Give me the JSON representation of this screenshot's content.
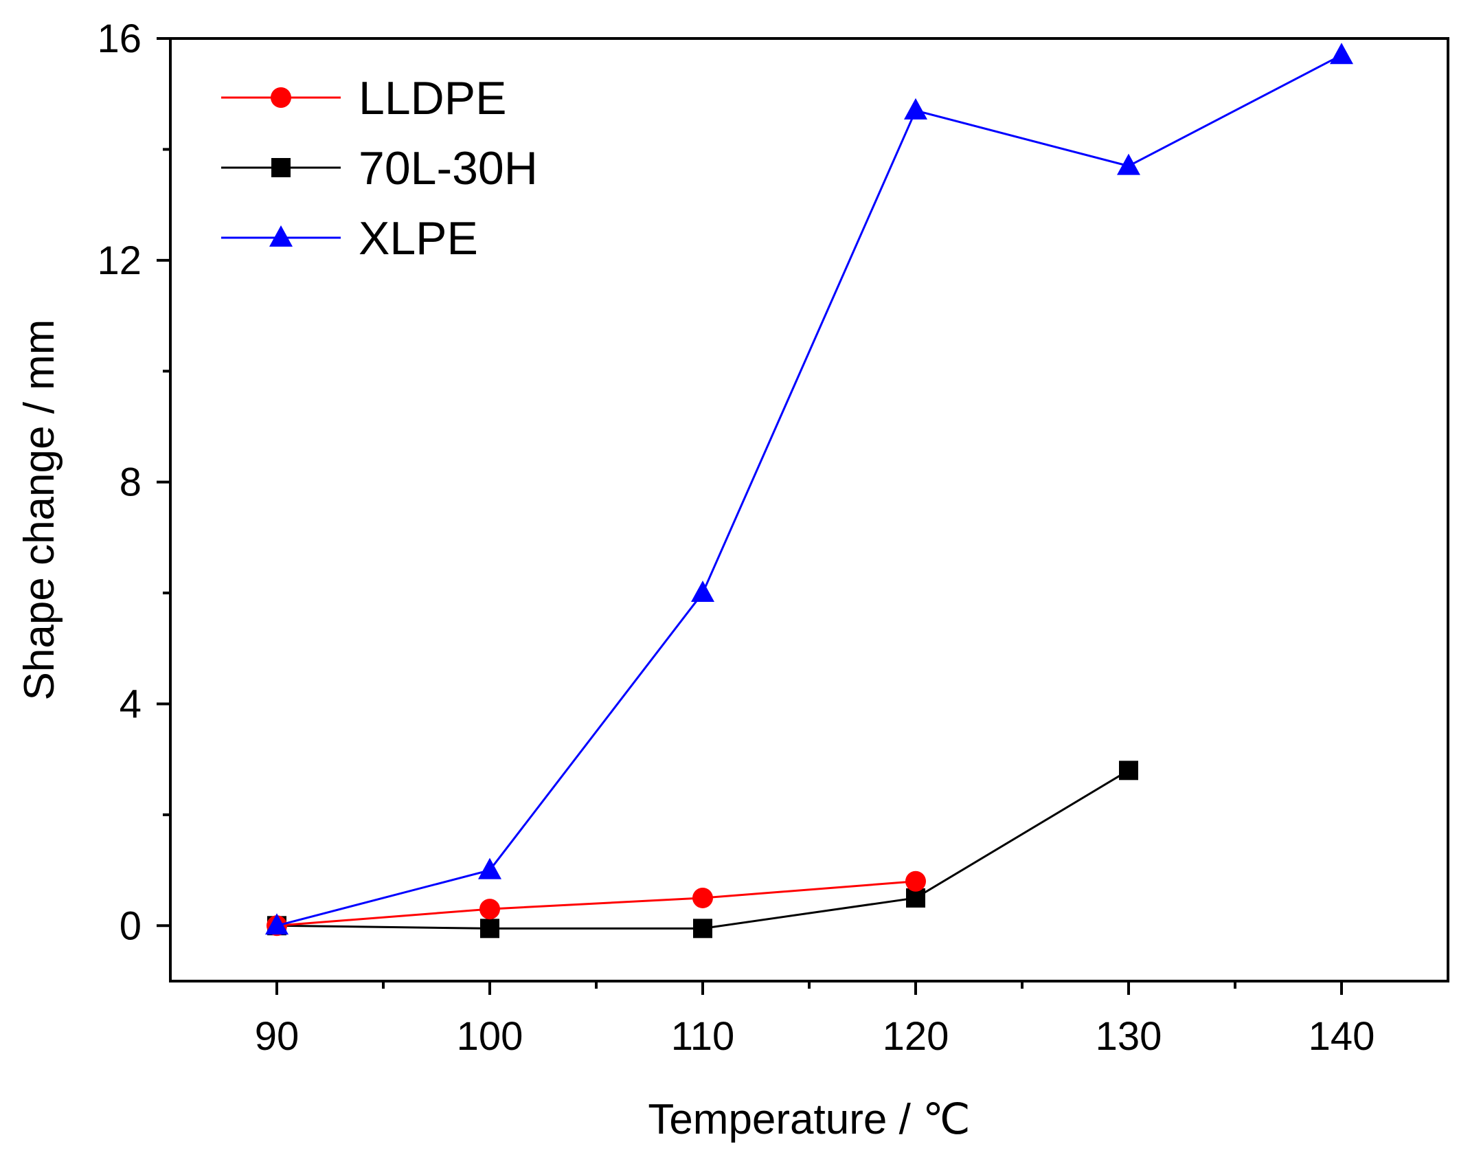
{
  "chart_data": {
    "type": "line",
    "title": "",
    "xlabel": "Temperature / ℃",
    "ylabel": "Shape change / mm",
    "xlim": [
      85,
      145
    ],
    "ylim": [
      -1,
      16
    ],
    "xticks": [
      90,
      100,
      110,
      120,
      130,
      140
    ],
    "yticks": [
      0,
      4,
      8,
      12,
      16
    ],
    "grid": false,
    "legend_position": "top-left",
    "series": [
      {
        "name": "LLDPE",
        "color": "#ff0000",
        "marker": "circle",
        "points": [
          [
            90,
            0.0
          ],
          [
            100,
            0.3
          ],
          [
            110,
            0.5
          ],
          [
            120,
            0.8
          ]
        ]
      },
      {
        "name": "70L-30H",
        "color": "#000000",
        "marker": "square",
        "points": [
          [
            90,
            0.0
          ],
          [
            100,
            -0.05
          ],
          [
            110,
            -0.05
          ],
          [
            120,
            0.5
          ],
          [
            130,
            2.8
          ]
        ]
      },
      {
        "name": "XLPE",
        "color": "#0000ff",
        "marker": "triangle",
        "points": [
          [
            90,
            0.0
          ],
          [
            100,
            1.0
          ],
          [
            110,
            6.0
          ],
          [
            120,
            14.7
          ],
          [
            130,
            13.7
          ],
          [
            140,
            15.7
          ]
        ]
      }
    ]
  }
}
